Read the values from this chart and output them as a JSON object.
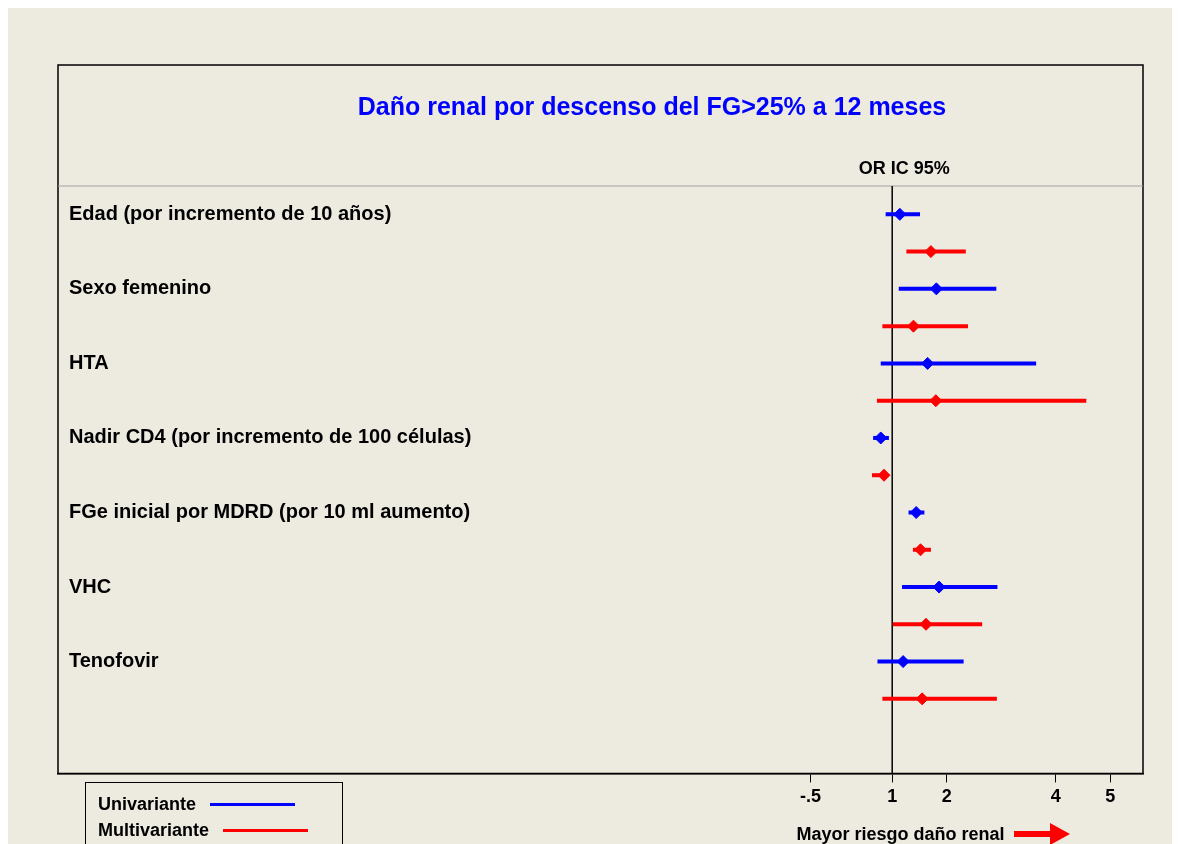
{
  "chart_data": {
    "type": "scatter",
    "orientation": "horizontal",
    "title": "Daño renal por descenso del FG>25% a 12 meses",
    "categories": [
      "Edad (por incremento de 10 años)",
      "Sexo femenino",
      "HTA",
      "Nadir CD4 (por incremento de 100 células)",
      "FGe inicial por MDRD (por 10 ml aumento)",
      "VHC",
      "Tenofovir"
    ],
    "series": [
      {
        "name": "Univariante",
        "color": "#0000ff",
        "values": [
          1.14,
          1.81,
          1.65,
          0.79,
          1.44,
          1.86,
          1.2
        ],
        "errors": [
          [
            0.88,
            1.51
          ],
          [
            1.12,
            2.91
          ],
          [
            0.79,
            3.64
          ],
          [
            0.65,
            0.94
          ],
          [
            1.3,
            1.59
          ],
          [
            1.18,
            2.93
          ],
          [
            0.73,
            2.31
          ]
        ]
      },
      {
        "name": "Multivariante",
        "color": "#ff0000",
        "values": [
          1.71,
          1.39,
          1.8,
          0.85,
          1.52,
          1.62,
          1.55
        ],
        "errors": [
          [
            1.26,
            2.35
          ],
          [
            0.82,
            2.39
          ],
          [
            0.72,
            4.56
          ],
          [
            0.63,
            0.88
          ],
          [
            1.38,
            1.71
          ],
          [
            1.01,
            2.65
          ],
          [
            0.82,
            2.92
          ]
        ]
      }
    ],
    "xlim": [
      -14.3,
      5.6
    ],
    "xticks": [
      {
        "value": -0.5,
        "label": "-.5"
      },
      1,
      2,
      4,
      5
    ],
    "xlabel": "Mayor riesgo daño renal",
    "annotations": [
      "OR IC 95%"
    ],
    "ref_lines": [
      {
        "axis": "x",
        "value": 1,
        "color": "#000000"
      }
    ],
    "marker": "diamond",
    "legend": "bottom left",
    "grid": false
  }
}
